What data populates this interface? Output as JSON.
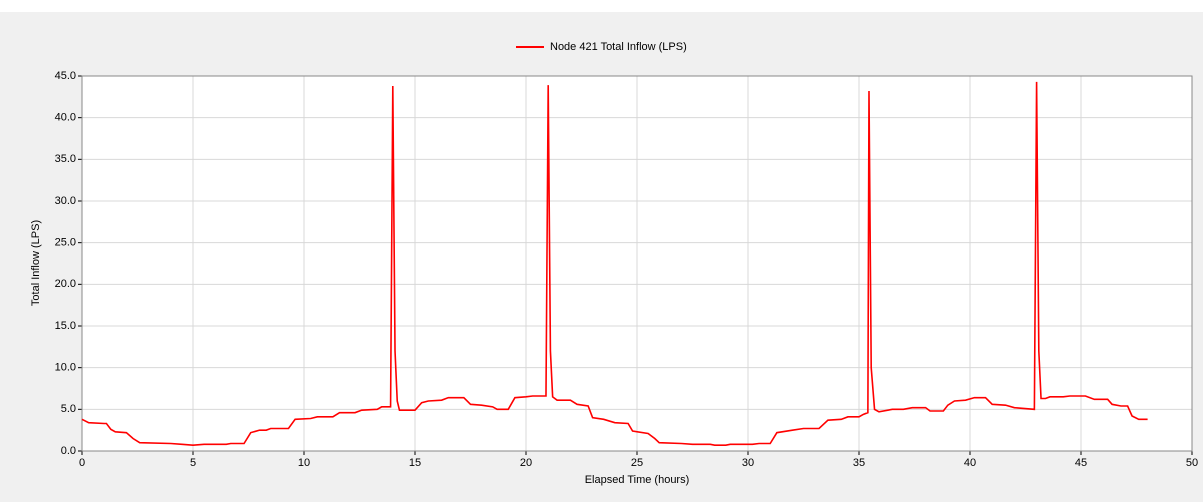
{
  "chart_data": {
    "type": "line",
    "x_label": "Elapsed Time (hours)",
    "y_label": "Total Inflow (LPS)",
    "x": [
      0,
      0.3,
      1,
      1.1,
      1.3,
      1.5,
      2,
      2.3,
      2.6,
      4,
      4.5,
      5,
      5.5,
      6.5,
      6.7,
      7.3,
      7.6,
      8,
      8.3,
      8.5,
      9.3,
      9.6,
      10.3,
      10.6,
      11.3,
      11.6,
      12.3,
      12.6,
      13.3,
      13.5,
      13.9,
      14.0,
      14.1,
      14.2,
      14.3,
      15,
      15.3,
      15.6,
      16.2,
      16.5,
      17.2,
      17.5,
      18,
      18.5,
      18.7,
      19.2,
      19.5,
      20,
      20.3,
      20.9,
      21.0,
      21.1,
      21.2,
      21.4,
      22,
      22.3,
      22.8,
      23,
      23.5,
      24,
      24.6,
      24.8,
      25.5,
      25.8,
      26,
      27,
      27.5,
      28.3,
      28.5,
      29,
      29.2,
      30.2,
      30.5,
      31,
      31.3,
      32,
      32.5,
      33.2,
      33.6,
      34.2,
      34.5,
      35,
      35.2,
      35.4,
      35.45,
      35.55,
      35.7,
      35.9,
      36.5,
      37,
      37.4,
      38,
      38.2,
      38.8,
      39,
      39.3,
      39.8,
      40.2,
      40.7,
      41,
      41.6,
      42,
      42.9,
      43.0,
      43.1,
      43.2,
      43.4,
      43.6,
      44.2,
      44.5,
      45.2,
      45.6,
      46.2,
      46.4,
      46.8,
      47.1,
      47.3,
      47.6,
      48
    ],
    "series": [
      {
        "name": "Node 421 Total Inflow (LPS)",
        "color": "#ff0000",
        "values": [
          3.8,
          3.4,
          3.3,
          3.3,
          2.6,
          2.3,
          2.2,
          1.5,
          1.0,
          0.9,
          0.8,
          0.7,
          0.8,
          0.8,
          0.9,
          0.9,
          2.2,
          2.5,
          2.5,
          2.7,
          2.7,
          3.8,
          3.9,
          4.1,
          4.1,
          4.6,
          4.6,
          4.9,
          5.0,
          5.3,
          5.3,
          43.8,
          12,
          6,
          4.9,
          4.9,
          5.8,
          6.0,
          6.1,
          6.4,
          6.4,
          5.6,
          5.5,
          5.3,
          5.0,
          5.0,
          6.4,
          6.5,
          6.6,
          6.6,
          43.9,
          12,
          6.5,
          6.1,
          6.1,
          5.6,
          5.4,
          4.0,
          3.8,
          3.4,
          3.3,
          2.4,
          2.1,
          1.5,
          1.0,
          0.9,
          0.8,
          0.8,
          0.7,
          0.7,
          0.8,
          0.8,
          0.9,
          0.9,
          2.2,
          2.5,
          2.7,
          2.7,
          3.7,
          3.8,
          4.1,
          4.1,
          4.4,
          4.6,
          43.2,
          10,
          5.0,
          4.7,
          5.0,
          5.0,
          5.2,
          5.2,
          4.8,
          4.8,
          5.5,
          6.0,
          6.1,
          6.4,
          6.4,
          5.6,
          5.5,
          5.2,
          5.0,
          44.3,
          12,
          6.3,
          6.3,
          6.5,
          6.5,
          6.6,
          6.6,
          6.2,
          6.2,
          5.6,
          5.4,
          5.4,
          4.2,
          3.8,
          3.8
        ]
      }
    ],
    "xlim": [
      0,
      50
    ],
    "xticks": [
      0,
      5,
      10,
      15,
      20,
      25,
      30,
      35,
      40,
      45,
      50
    ],
    "ylim": [
      0,
      45
    ],
    "yticks": [
      {
        "value": 0,
        "label": "0.0"
      },
      {
        "value": 5,
        "label": "5.0"
      },
      {
        "value": 10,
        "label": "10.0"
      },
      {
        "value": 15,
        "label": "15.0"
      },
      {
        "value": 20,
        "label": "20.0"
      },
      {
        "value": 25,
        "label": "25.0"
      },
      {
        "value": 30,
        "label": "30.0"
      },
      {
        "value": 35,
        "label": "35.0"
      },
      {
        "value": 40,
        "label": "40.0"
      },
      {
        "value": 45,
        "label": "45.0"
      }
    ],
    "grid": true
  }
}
